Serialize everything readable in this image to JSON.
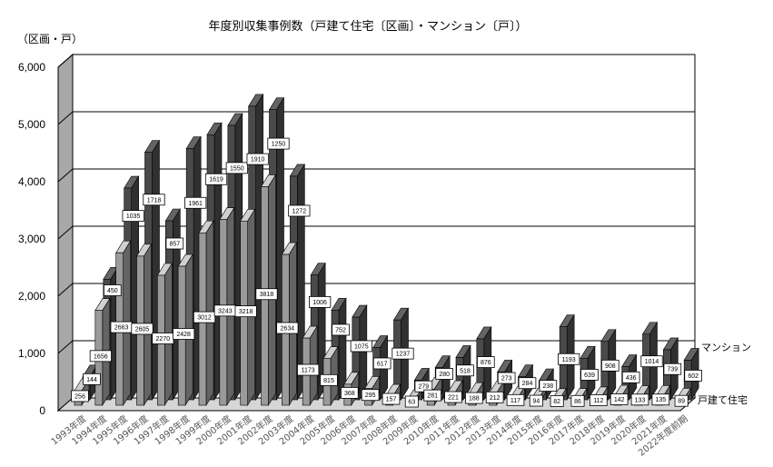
{
  "chart_data": {
    "type": "bar",
    "title": "年度別収集事例数（戸建て住宅〔区画〕・マンション〔戸〕）",
    "unit_label": "（区画・戸）",
    "ylim": [
      0,
      6000
    ],
    "y_ticks": [
      "0",
      "1,000",
      "2,000",
      "3,000",
      "4,000",
      "5,000",
      "6,000"
    ],
    "grid": true,
    "legend_placement": "right",
    "categories": [
      "1993年度",
      "1994年度",
      "1995年度",
      "1996年度",
      "1997年度",
      "1998年度",
      "1999年度",
      "2000年度",
      "2001年度",
      "2002年度",
      "2003年度",
      "2004年度",
      "2005年度",
      "2006年度",
      "2007年度",
      "2008年度",
      "2009年度",
      "2010年度",
      "2011年度",
      "2012年度",
      "2013年度",
      "2014年度",
      "2015年度",
      "2016年度",
      "2017年度",
      "2018年度",
      "2019年度",
      "2020年度",
      "2021年度",
      "2022年度前期"
    ],
    "series": [
      {
        "name": "戸建て住宅",
        "color": "#9a9a9a",
        "values": [
          256,
          1656,
          2663,
          2605,
          2270,
          2428,
          3012,
          3243,
          3218,
          3818,
          2634,
          1173,
          815,
          368,
          295,
          157,
          63,
          281,
          221,
          188,
          212,
          117,
          94,
          82,
          86,
          112,
          142,
          133,
          135,
          89
        ]
      },
      {
        "name": "マンション",
        "color": "#4a4a4a",
        "values": [
          144,
          450,
          1035,
          1718,
          857,
          1961,
          1619,
          1550,
          1910,
          1250,
          1272,
          1006,
          752,
          1075,
          617,
          1237,
          279,
          280,
          518,
          876,
          273,
          284,
          238,
          1193,
          639,
          908,
          436,
          1014,
          739,
          602
        ]
      }
    ]
  }
}
